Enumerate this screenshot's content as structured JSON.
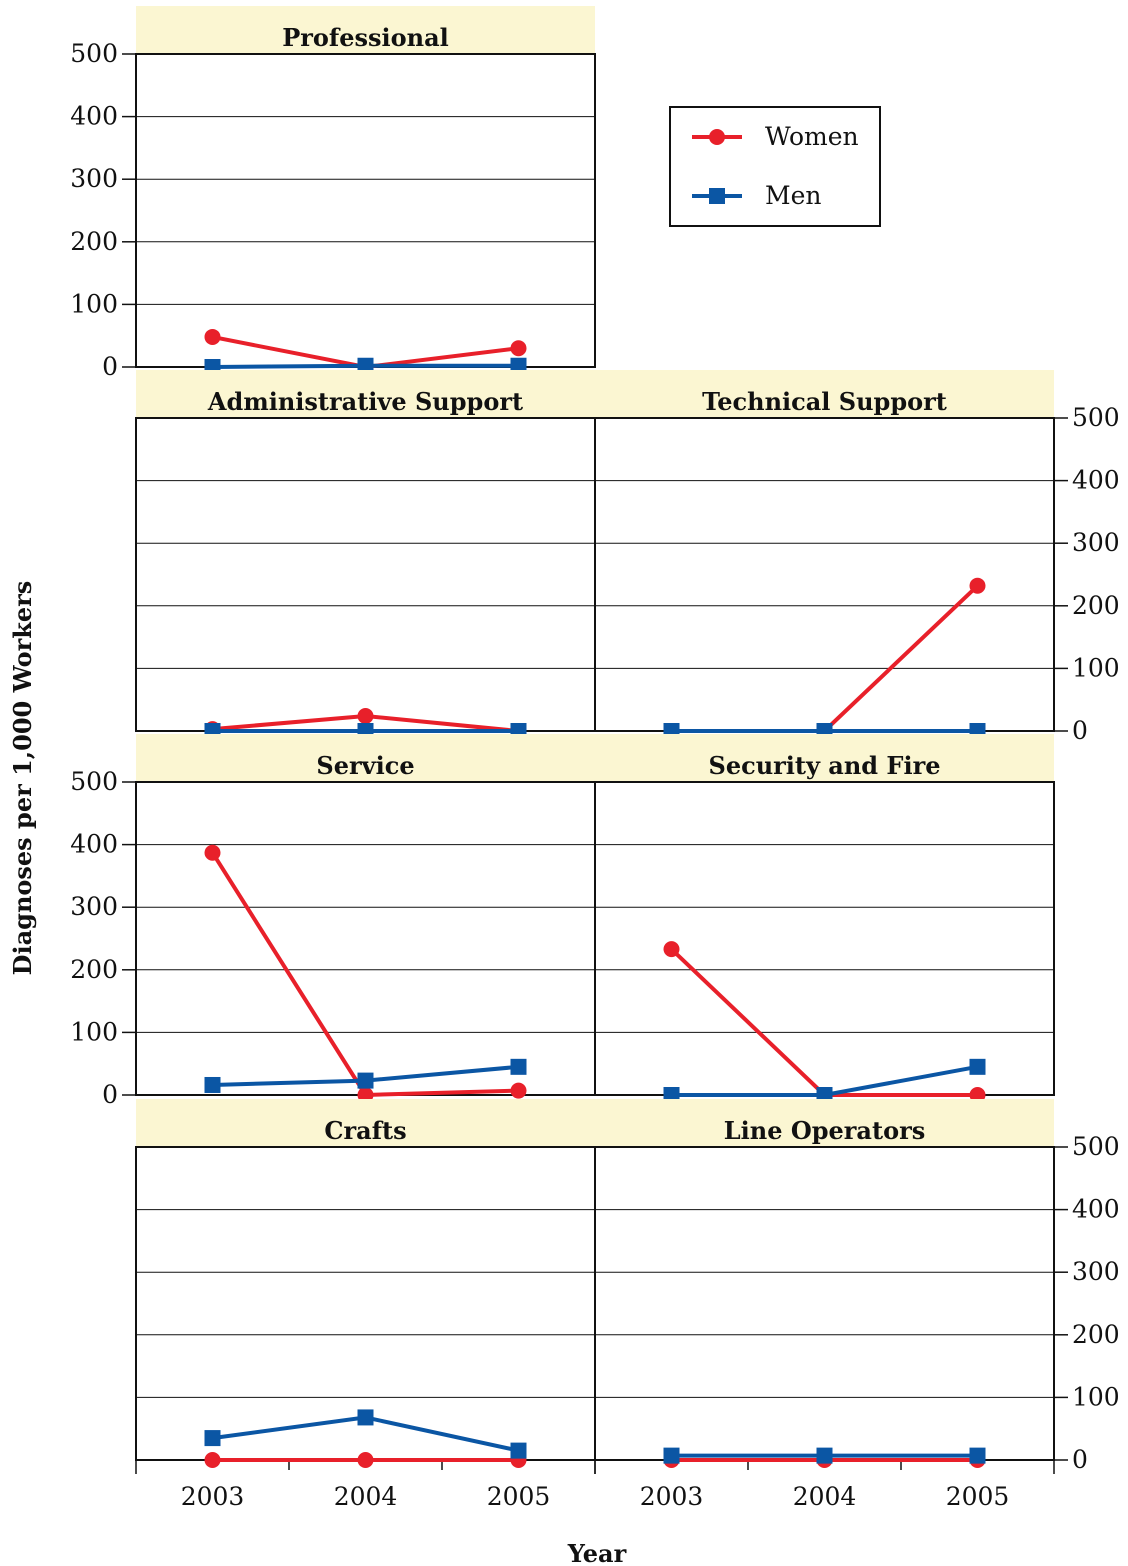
{
  "chart_data": {
    "type": "line",
    "xlabel": "Year",
    "ylabel": "Diagnoses per 1,000 Workers",
    "x": [
      "2003",
      "2004",
      "2005"
    ],
    "ylim": [
      0,
      500
    ],
    "yticks": [
      "0",
      "100",
      "200",
      "300",
      "400",
      "500"
    ],
    "grid": true,
    "legend": {
      "placement": "top-right",
      "entries": [
        {
          "name": "Women",
          "color": "#e8202a",
          "marker": "circle"
        },
        {
          "name": "Men",
          "color": "#0b56a4",
          "marker": "square"
        }
      ]
    },
    "panels": [
      {
        "title": "Professional",
        "series": [
          {
            "name": "Women",
            "values": [
              48,
              0,
              30
            ]
          },
          {
            "name": "Men",
            "values": [
              0,
              2,
              2
            ]
          }
        ]
      },
      {
        "title": "Administrative Support",
        "series": [
          {
            "name": "Women",
            "values": [
              3,
              24,
              0
            ]
          },
          {
            "name": "Men",
            "values": [
              0,
              0,
              0
            ]
          }
        ]
      },
      {
        "title": "Technical Support",
        "series": [
          {
            "name": "Women",
            "values": [
              0,
              0,
              232
            ]
          },
          {
            "name": "Men",
            "values": [
              0,
              0,
              0
            ]
          }
        ]
      },
      {
        "title": "Service",
        "series": [
          {
            "name": "Women",
            "values": [
              387,
              0,
              7
            ]
          },
          {
            "name": "Men",
            "values": [
              16,
              23,
              45
            ]
          }
        ]
      },
      {
        "title": "Security and Fire",
        "series": [
          {
            "name": "Women",
            "values": [
              233,
              0,
              0
            ]
          },
          {
            "name": "Men",
            "values": [
              0,
              0,
              45
            ]
          }
        ]
      },
      {
        "title": "Crafts",
        "series": [
          {
            "name": "Women",
            "values": [
              0,
              0,
              0
            ]
          },
          {
            "name": "Men",
            "values": [
              35,
              68,
              15
            ]
          }
        ]
      },
      {
        "title": "Line Operators",
        "series": [
          {
            "name": "Women",
            "values": [
              0,
              0,
              0
            ]
          },
          {
            "name": "Men",
            "values": [
              7,
              7,
              7
            ]
          }
        ]
      }
    ]
  }
}
